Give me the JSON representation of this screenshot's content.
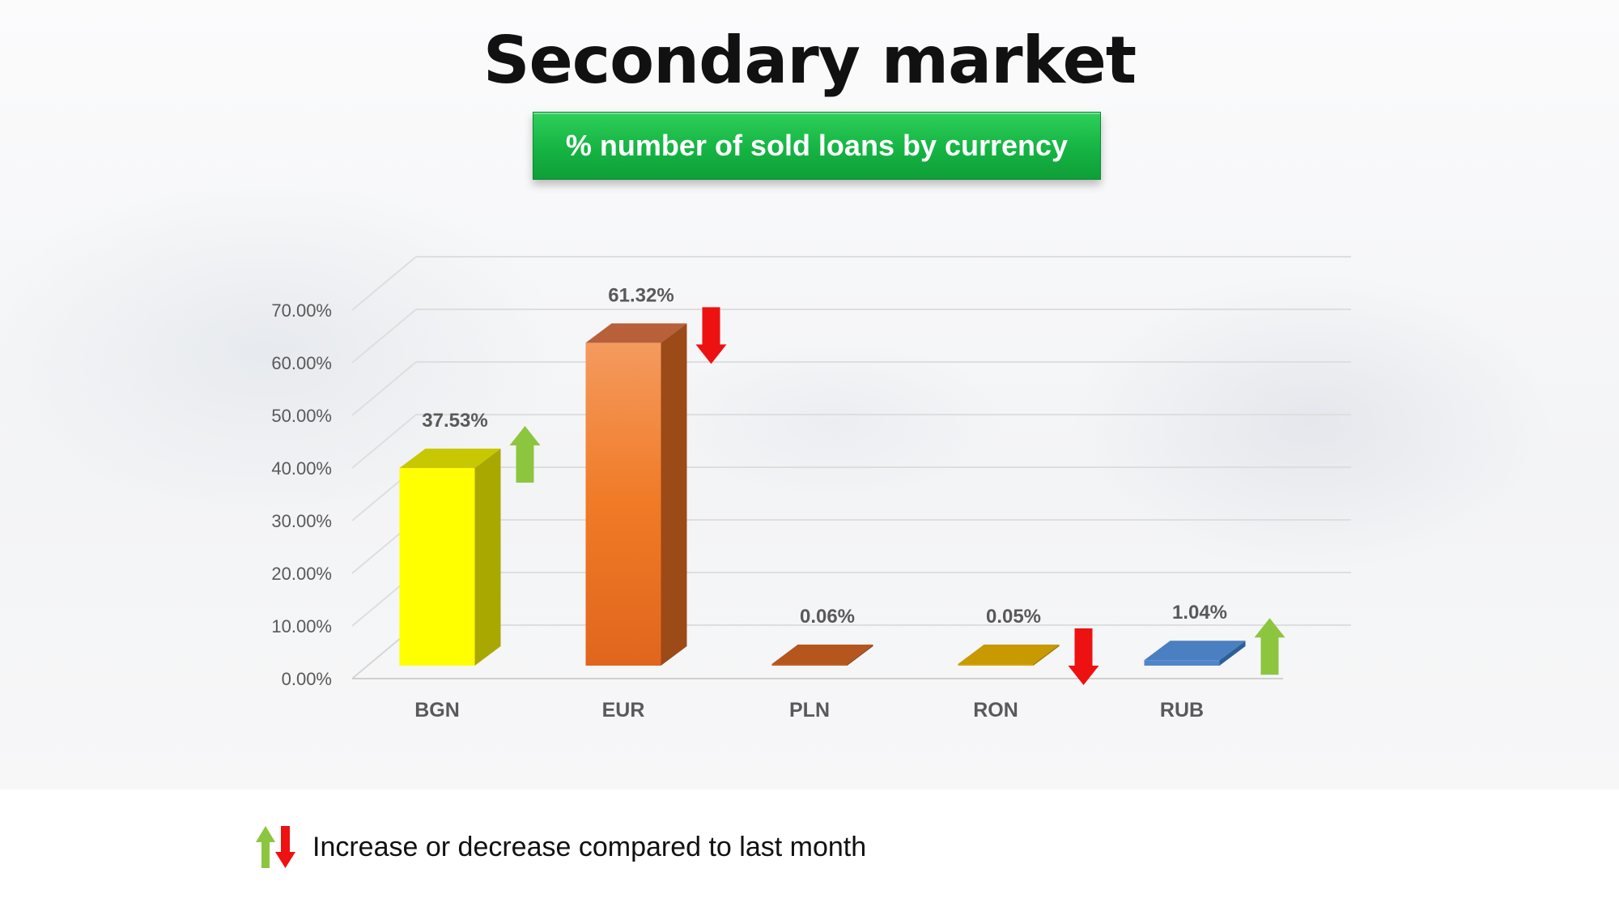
{
  "page": {
    "title": "Secondary market",
    "subtitle": "% number of sold loans by currency",
    "legend_text": "Increase or decrease compared to last month"
  },
  "colors": {
    "subtitle_bg": "#16b444",
    "arrow_up": "#8cc63f",
    "arrow_down": "#ee1111",
    "axis_text": "#595959",
    "label_text": "#595959"
  },
  "chart_data": {
    "type": "bar",
    "style": "3d-columns",
    "title": "",
    "xlabel": "",
    "ylabel": "",
    "categories": [
      "BGN",
      "EUR",
      "PLN",
      "RON",
      "RUB"
    ],
    "values": [
      37.53,
      61.32,
      0.06,
      0.05,
      1.04
    ],
    "data_labels": [
      "37.53%",
      "61.32%",
      "0.06%",
      "0.05%",
      "1.04%"
    ],
    "bar_colors": [
      "#ffff00",
      "#f07a26",
      "#b5561f",
      "#c89a00",
      "#4a7fc1"
    ],
    "trend": [
      "up",
      "down",
      null,
      "down",
      "up"
    ],
    "ylim": [
      0,
      70
    ],
    "yticks": [
      0,
      10,
      20,
      30,
      40,
      50,
      60,
      70
    ],
    "ytick_labels": [
      "0.00%",
      "10.00%",
      "20.00%",
      "30.00%",
      "40.00%",
      "50.00%",
      "60.00%",
      "70.00%"
    ],
    "grid": true,
    "legend": "bottom-left"
  }
}
